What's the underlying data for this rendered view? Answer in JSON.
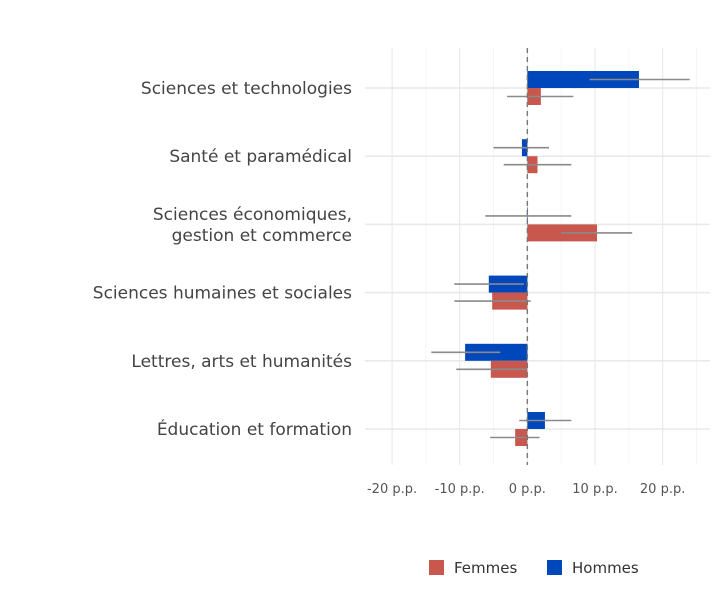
{
  "chart_data": {
    "type": "bar",
    "orientation": "horizontal",
    "categories": [
      [
        "Sciences et technologies"
      ],
      [
        "Santé et paramédical"
      ],
      [
        "Sciences économiques,",
        "gestion et commerce"
      ],
      [
        "Sciences humaines et sociales"
      ],
      [
        "Lettres, arts et humanités"
      ],
      [
        "Éducation et formation"
      ]
    ],
    "series": [
      {
        "name": "Hommes",
        "color": "#0047BB",
        "values": [
          16.5,
          -0.8,
          0,
          -5.7,
          -9.2,
          2.6
        ],
        "ci_low": [
          9.2,
          -5.0,
          -6.2,
          -10.8,
          -14.2,
          -1.2
        ],
        "ci_high": [
          24.0,
          3.2,
          6.5,
          -0.5,
          -4.0,
          6.5
        ]
      },
      {
        "name": "Femmes",
        "color": "#C8574D",
        "values": [
          2.0,
          1.5,
          10.3,
          -5.2,
          -5.4,
          -1.8
        ],
        "ci_low": [
          -3.0,
          -3.5,
          5.0,
          -10.8,
          -10.5,
          -5.5
        ],
        "ci_high": [
          6.8,
          6.5,
          15.5,
          0.5,
          0,
          1.8
        ]
      }
    ],
    "xticks": [
      -20,
      -10,
      0,
      10,
      20
    ],
    "xtick_labels": [
      "-20 p.p.",
      "-10 p.p.",
      "0 p.p.",
      "10 p.p.",
      "20 p.p."
    ],
    "xlim": [
      -24,
      27
    ],
    "reference_line": 0,
    "grid": true,
    "legend_position": "bottom-right",
    "legend_order": [
      "Femmes",
      "Hommes"
    ]
  }
}
